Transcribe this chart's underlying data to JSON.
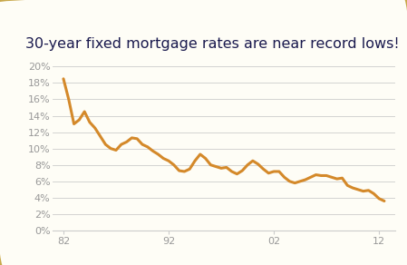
{
  "title": "30-year fixed mortgage rates are near record lows!",
  "title_fontsize": 11.5,
  "title_color": "#1a1a4e",
  "line_color": "#D4892A",
  "line_width": 2.2,
  "background_color": "#FEFDF6",
  "border_color": "#C8A84B",
  "grid_color": "#CCCCCC",
  "tick_color": "#999999",
  "xtick_labels": [
    "82",
    "92",
    "02",
    "12"
  ],
  "xtick_positions": [
    1982,
    1992,
    2002,
    2012
  ],
  "yticks": [
    0,
    2,
    4,
    6,
    8,
    10,
    12,
    14,
    16,
    18,
    20
  ],
  "ytick_labels": [
    "0%",
    "2%",
    "4%",
    "6%",
    "8%",
    "10%",
    "12%",
    "14%",
    "16%",
    "18%",
    "20%"
  ],
  "xlim": [
    1981.0,
    2013.5
  ],
  "ylim": [
    0,
    21
  ],
  "x_data": [
    1982,
    1982.5,
    1983,
    1983.5,
    1984,
    1984.5,
    1985,
    1985.5,
    1986,
    1986.5,
    1987,
    1987.5,
    1988,
    1988.5,
    1989,
    1989.5,
    1990,
    1990.5,
    1991,
    1991.5,
    1992,
    1992.5,
    1993,
    1993.5,
    1994,
    1994.5,
    1995,
    1995.5,
    1996,
    1996.5,
    1997,
    1997.5,
    1998,
    1998.5,
    1999,
    1999.5,
    2000,
    2000.5,
    2001,
    2001.5,
    2002,
    2002.5,
    2003,
    2003.5,
    2004,
    2004.5,
    2005,
    2005.5,
    2006,
    2006.5,
    2007,
    2007.5,
    2008,
    2008.5,
    2009,
    2009.5,
    2010,
    2010.5,
    2011,
    2011.5,
    2012,
    2012.5
  ],
  "y_data": [
    18.5,
    16.0,
    13.0,
    13.5,
    14.5,
    13.2,
    12.5,
    11.5,
    10.5,
    10.0,
    9.8,
    10.5,
    10.8,
    11.3,
    11.2,
    10.5,
    10.2,
    9.7,
    9.3,
    8.8,
    8.5,
    8.0,
    7.3,
    7.2,
    7.5,
    8.5,
    9.3,
    8.8,
    8.0,
    7.8,
    7.6,
    7.7,
    7.2,
    6.9,
    7.3,
    8.0,
    8.5,
    8.1,
    7.5,
    7.0,
    7.2,
    7.2,
    6.5,
    6.0,
    5.8,
    6.0,
    6.2,
    6.5,
    6.8,
    6.7,
    6.7,
    6.5,
    6.3,
    6.4,
    5.5,
    5.2,
    5.0,
    4.8,
    4.9,
    4.5,
    3.9,
    3.6
  ]
}
